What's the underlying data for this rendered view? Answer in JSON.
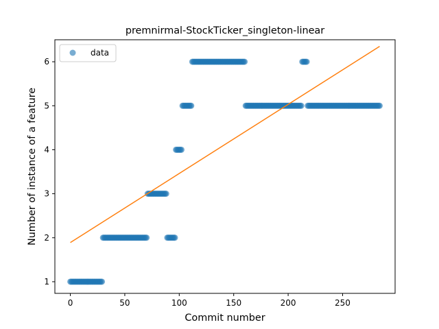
{
  "chart_data": {
    "type": "scatter",
    "title": "premnirmal-StockTicker_singleton-linear",
    "xlabel": "Commit number",
    "ylabel": "Number of instance of a feature",
    "xlim": [
      -14.2,
      298.2
    ],
    "ylim": [
      0.735,
      6.5
    ],
    "xticks": [
      0,
      50,
      100,
      150,
      200,
      250
    ],
    "yticks": [
      1,
      2,
      3,
      4,
      5,
      6
    ],
    "legend": {
      "position": "top-left",
      "entries": [
        "data"
      ]
    },
    "colors": {
      "points": "#1f77b4",
      "fit": "#ff7f0e"
    },
    "series": [
      {
        "name": "data",
        "kind": "points",
        "segments": [
          {
            "x_start": 0,
            "x_end": 29,
            "y": 1
          },
          {
            "x_start": 30,
            "x_end": 70,
            "y": 2
          },
          {
            "x_start": 71,
            "x_end": 88,
            "y": 3
          },
          {
            "x_start": 89,
            "x_end": 96,
            "y": 2
          },
          {
            "x_start": 97,
            "x_end": 102,
            "y": 4
          },
          {
            "x_start": 103,
            "x_end": 111,
            "y": 5
          },
          {
            "x_start": 112,
            "x_end": 160,
            "y": 6
          },
          {
            "x_start": 161,
            "x_end": 212,
            "y": 5
          },
          {
            "x_start": 213,
            "x_end": 217,
            "y": 6
          },
          {
            "x_start": 218,
            "x_end": 284,
            "y": 5
          }
        ]
      },
      {
        "kind": "line",
        "points": [
          [
            0,
            1.89
          ],
          [
            284,
            6.35
          ]
        ]
      }
    ]
  }
}
